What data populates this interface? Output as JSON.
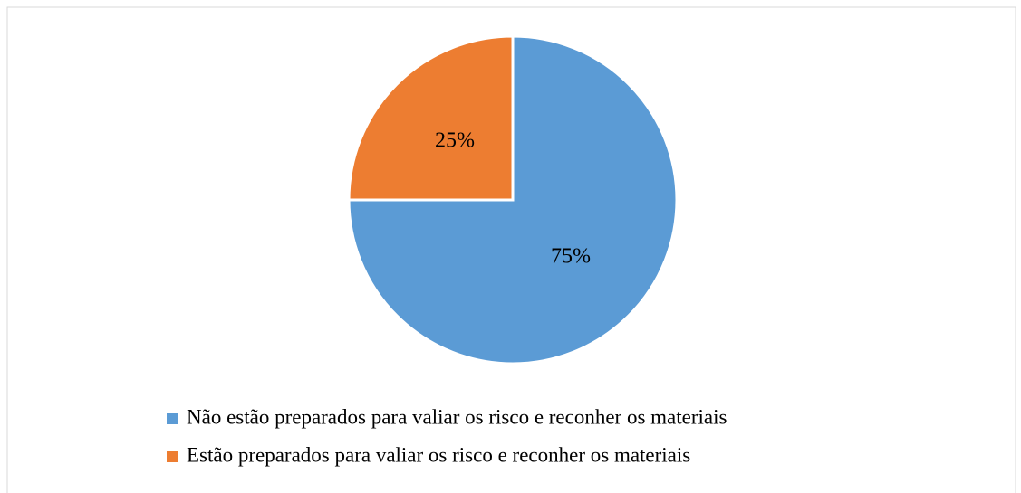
{
  "chart_data": {
    "type": "pie",
    "categories": [
      "Não estão preparados para valiar os risco e reconher os materiais",
      "Estão preparados para valiar os risco e reconher os materiais"
    ],
    "values": [
      75,
      25
    ],
    "value_labels": [
      "75%",
      "25%"
    ],
    "colors": [
      "#5b9bd5",
      "#ed7d31"
    ],
    "legend": "bottom"
  }
}
